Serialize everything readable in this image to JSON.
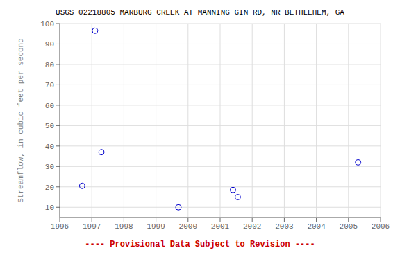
{
  "chart_data": {
    "type": "scatter",
    "title": "USGS 02218805 MARBURG CREEK AT MANNING GIN RD, NR BETHLEHEM, GA",
    "ylabel": "Streamflow, in cubic feet per second",
    "x": [
      1996.7,
      1997.1,
      1997.3,
      1999.7,
      2001.4,
      2001.55,
      2005.3
    ],
    "values": [
      20.5,
      96.5,
      37.0,
      10.0,
      18.5,
      15.0,
      32.0
    ],
    "color": "#0000CC",
    "marker": "open circle",
    "xlim": [
      1996,
      2006
    ],
    "ylim": [
      5,
      100
    ],
    "xticks": [
      1996,
      1997,
      1998,
      1999,
      2000,
      2001,
      2002,
      2003,
      2004,
      2005,
      2006
    ],
    "yticks": [
      10,
      20,
      30,
      40,
      50,
      60,
      70,
      80,
      90,
      100
    ],
    "grid": true,
    "annotations": [
      {
        "text": "---- Provisional Data Subject to Revision ----",
        "color": "#cc0000"
      }
    ]
  }
}
